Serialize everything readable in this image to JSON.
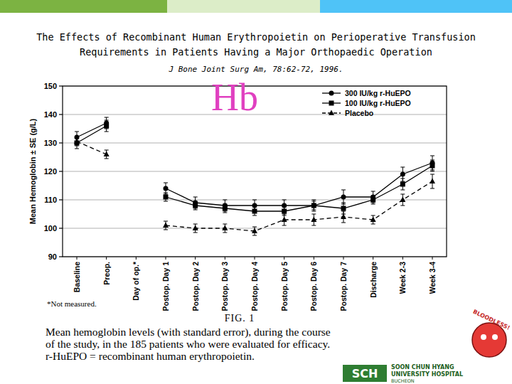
{
  "page": {
    "title": [
      "The Effects of Recombinant Human Erythropoietin on Perioperative Transfusion",
      "Requirements in Patients Having a Major Orthopaedic Operation"
    ],
    "citation": "J Bone Joint Surg Am, 78:62-72, 1996.",
    "heading": "Hb",
    "caption": [
      "Mean hemoglobin levels (with standard error), during the course",
      "of the study, in the 185 patients who were evaluated for efficacy.",
      "r-HuEPO = recombinant human erythropoietin."
    ],
    "logo": [
      "SCH",
      "SOON CHUN HYANG",
      "UNIVERSITY HOSPITAL",
      "BUCHEON"
    ],
    "mascot": "BLOODLESS!"
  },
  "chart_data": {
    "type": "line",
    "title": "FIG. 1",
    "y_label": "Mean Hemoglobin ± SE (g/L)",
    "annotations": [
      "*Not measured."
    ],
    "categories": [
      "Baseline",
      "Preop.",
      "Day of op.*",
      "Postop. Day 1",
      "Postop. Day 2",
      "Postop. Day 3",
      "Postop. Day 4",
      "Postop. Day 5",
      "Postop. Day 6",
      "Postop. Day 7",
      "Discharge",
      "Week 2-3",
      "Week 3-4"
    ],
    "series": [
      {
        "name": "300 IU/kg r-HuEPO",
        "color": "#000000",
        "marker": "circle",
        "line_style": "solid",
        "values": [
          132,
          137,
          null,
          114,
          109,
          108,
          108,
          108,
          108,
          111,
          111,
          119,
          123
        ],
        "errors": [
          2,
          2,
          null,
          2,
          2,
          2,
          2,
          2,
          2,
          2.5,
          2,
          2.5,
          2.5
        ]
      },
      {
        "name": "100 IU/kg r-HuEPO",
        "color": "#000000",
        "marker": "square",
        "line_style": "solid",
        "values": [
          130,
          136,
          null,
          111,
          108,
          107,
          106,
          106,
          108,
          107,
          110,
          115.5,
          122
        ],
        "errors": [
          2,
          2,
          null,
          1.5,
          1.5,
          1.5,
          1.5,
          1.5,
          1.5,
          2,
          1.5,
          2,
          2
        ]
      },
      {
        "name": "Placebo",
        "color": "#000000",
        "marker": "triangle",
        "line_style": "dashed",
        "values": [
          130.5,
          126,
          null,
          101,
          100,
          100,
          99,
          103,
          103,
          104,
          103,
          110,
          116.5
        ],
        "errors": [
          1.5,
          1.5,
          null,
          1.5,
          1.5,
          1.5,
          1.5,
          2,
          2,
          2,
          1.5,
          2,
          2.5
        ]
      }
    ],
    "ylim": [
      90,
      150
    ],
    "yticks": [
      90,
      100,
      110,
      120,
      130,
      140,
      150
    ],
    "grid": true,
    "legend": "upper right"
  }
}
